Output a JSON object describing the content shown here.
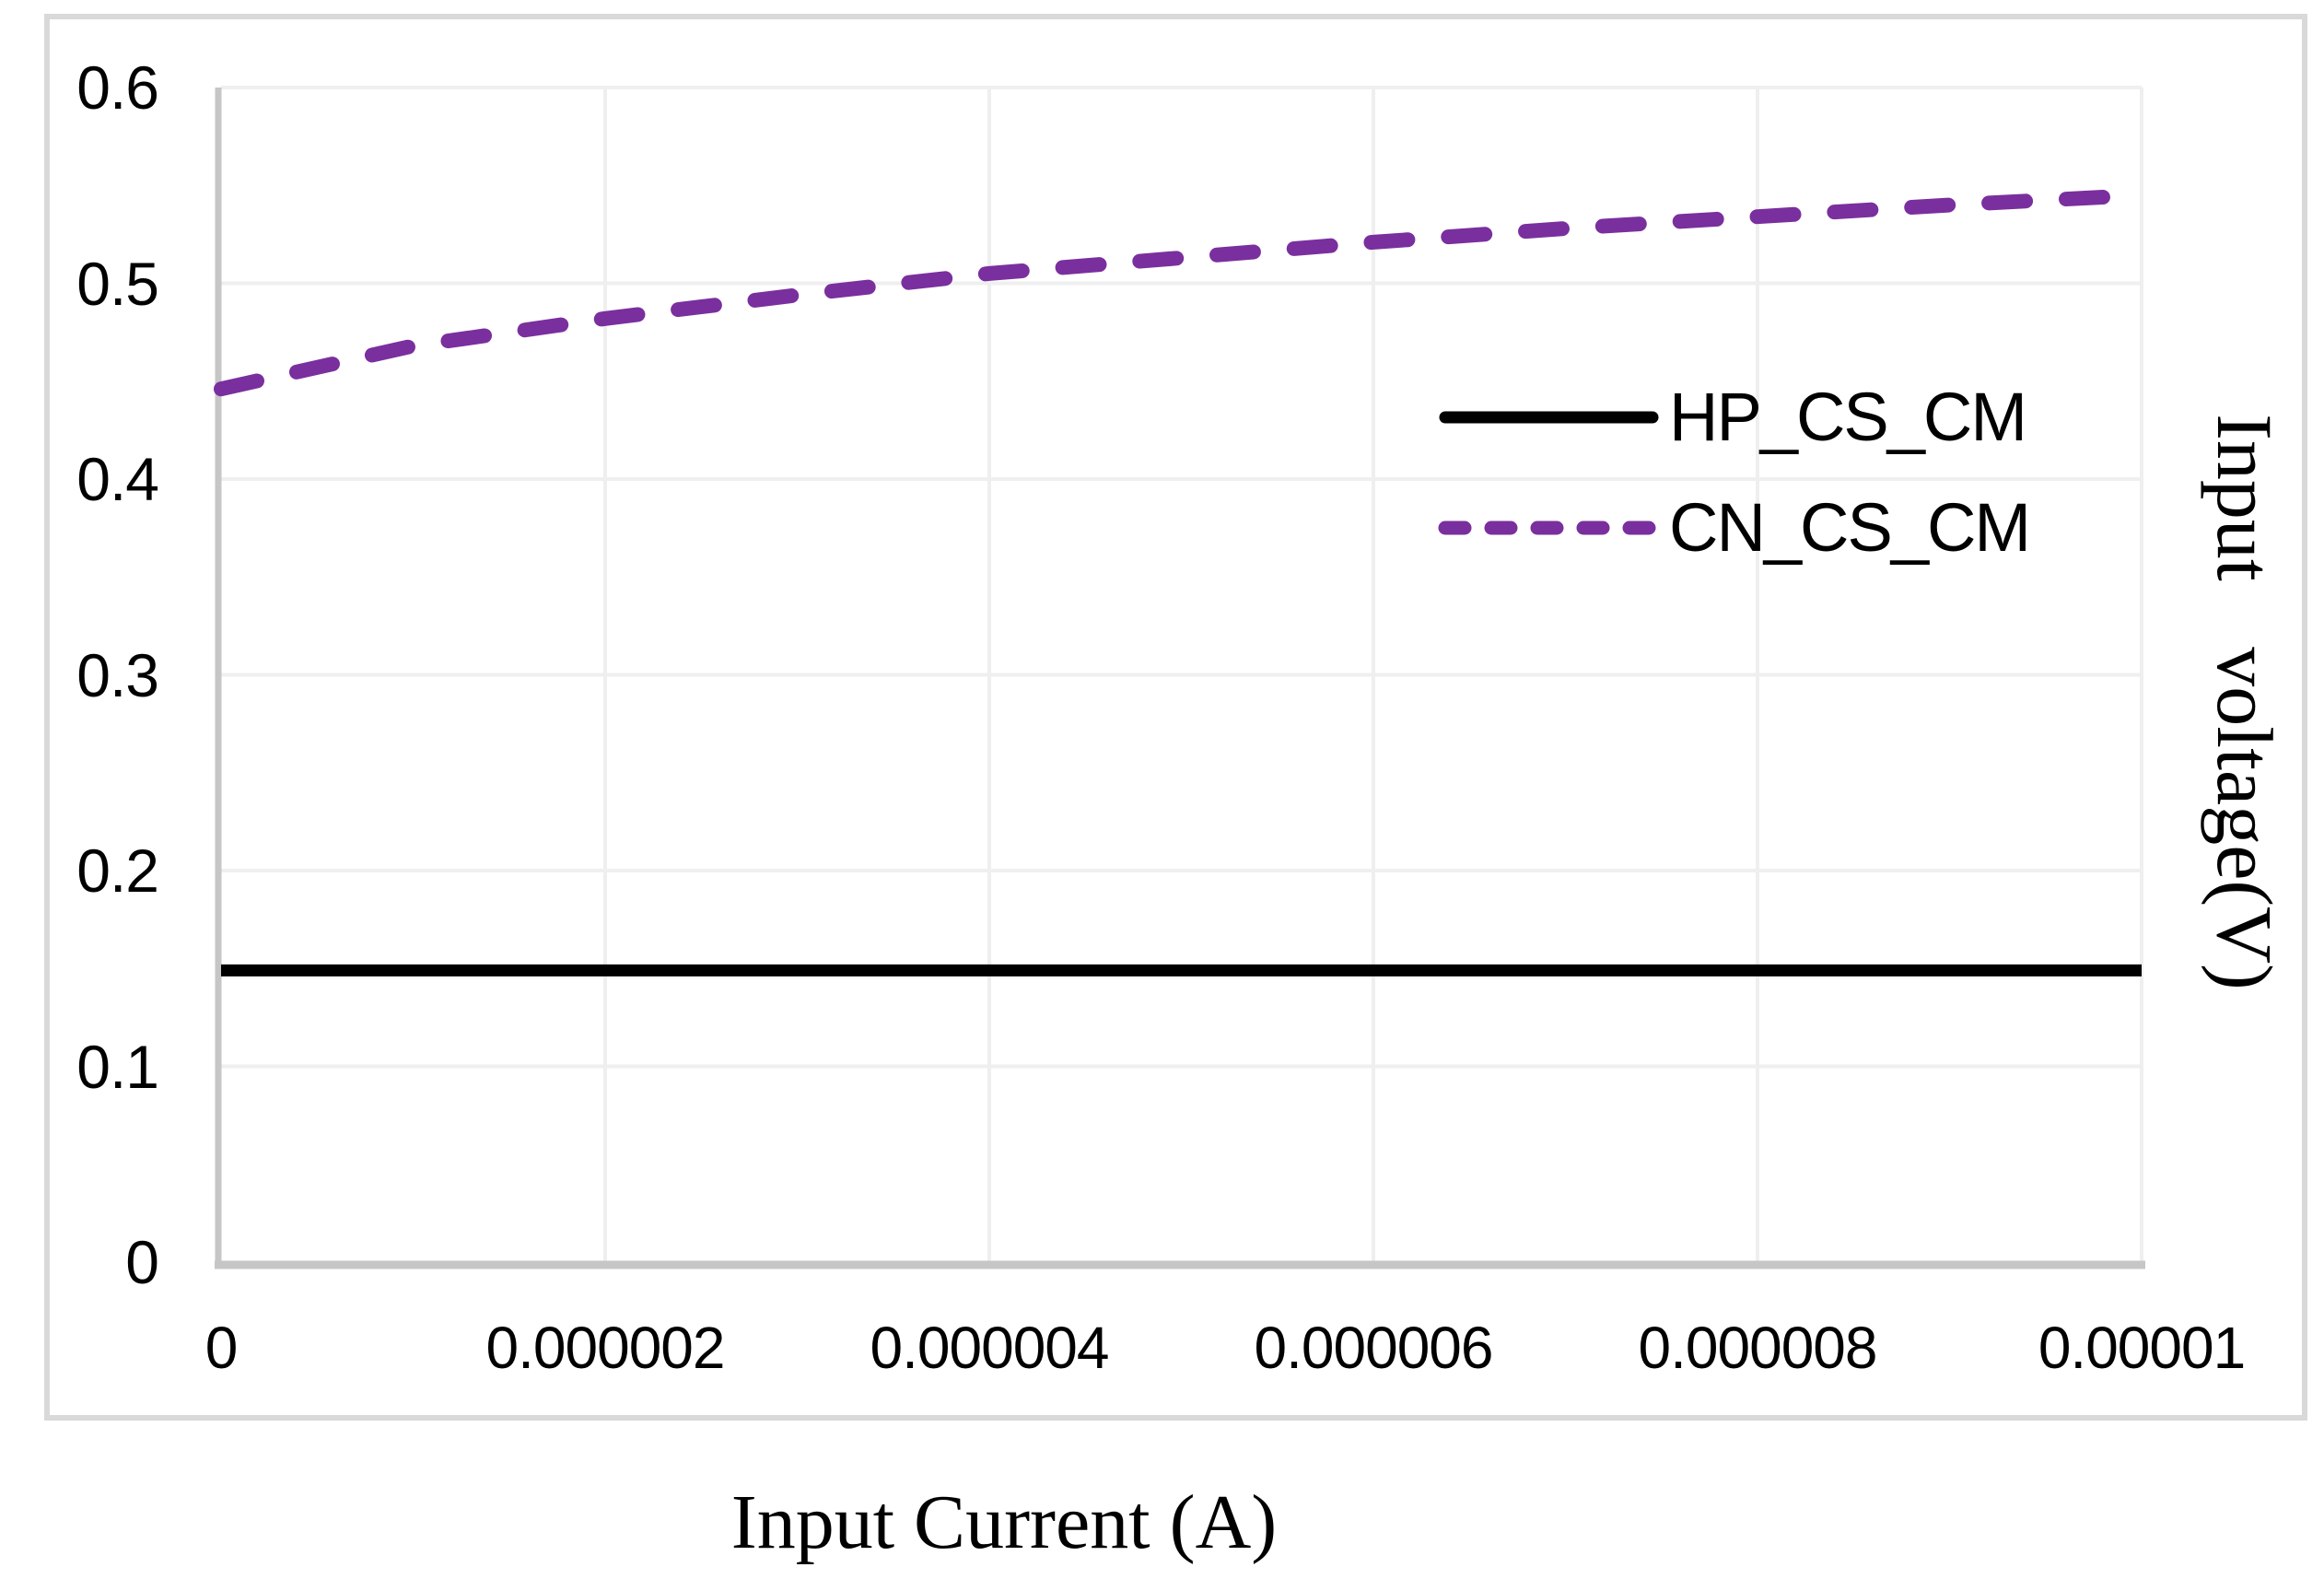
{
  "figure": {
    "x_axis_title": "Input Current (A)",
    "y_axis_title": "Input voltage(V)"
  },
  "legend": {
    "position": "middle-right",
    "items": [
      {
        "label": "HP_CS_CM",
        "color": "#000000",
        "style": "solid"
      },
      {
        "label": "CN_CS_CM",
        "color": "#7a2f9e",
        "style": "dashed"
      }
    ]
  },
  "colors": {
    "series_black": "#000000",
    "series_purple": "#7a2f9e",
    "gridline": "#efefef",
    "axis_line": "#c6c6c6",
    "outer_border": "#d9d9d9",
    "text": "#000000"
  },
  "chart_data": {
    "type": "line",
    "title": "",
    "xlabel": "Input Current (A)",
    "ylabel": "Input voltage(V)",
    "xlim": [
      0,
      1e-05
    ],
    "ylim": [
      0,
      0.6
    ],
    "grid": true,
    "legend_position": "middle-right",
    "x_ticks": [
      "0",
      "0.000002",
      "0.000004",
      "0.000006",
      "0.000008",
      "0.00001"
    ],
    "x_tick_values": [
      0,
      2e-06,
      4e-06,
      6e-06,
      8e-06,
      1e-05
    ],
    "y_ticks": [
      "0",
      "0.1",
      "0.2",
      "0.3",
      "0.4",
      "0.5",
      "0.6"
    ],
    "y_tick_values": [
      0,
      0.1,
      0.2,
      0.3,
      0.4,
      0.5,
      0.6
    ],
    "x": [
      0,
      1e-06,
      2e-06,
      3e-06,
      4e-06,
      5e-06,
      6e-06,
      7e-06,
      8e-06,
      9e-06,
      1e-05
    ],
    "series": [
      {
        "name": "HP_CS_CM",
        "color": "#000000",
        "dash": "solid",
        "values": [
          0.149,
          0.149,
          0.149,
          0.149,
          0.149,
          0.149,
          0.149,
          0.149,
          0.149,
          0.149,
          0.149
        ]
      },
      {
        "name": "CN_CS_CM",
        "color": "#7a2f9e",
        "dash": "dashed",
        "values": [
          0.446,
          0.468,
          0.482,
          0.494,
          0.505,
          0.513,
          0.521,
          0.528,
          0.534,
          0.54,
          0.545
        ]
      }
    ]
  }
}
